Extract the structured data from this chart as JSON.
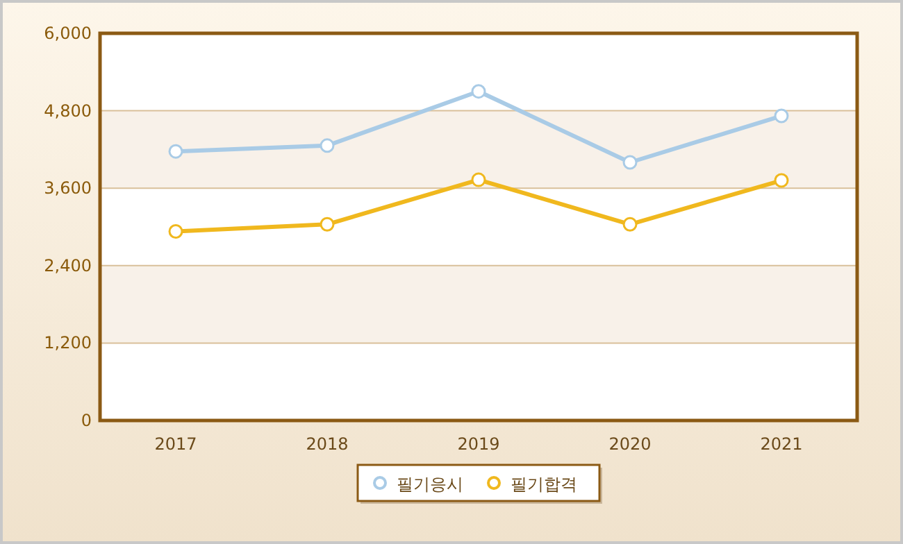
{
  "chart_data": {
    "type": "line",
    "categories": [
      "2017",
      "2018",
      "2019",
      "2020",
      "2021"
    ],
    "series": [
      {
        "name": "필기응시",
        "color": "#a9cbe6",
        "values": [
          4170,
          4260,
          5100,
          4000,
          4720
        ]
      },
      {
        "name": "필기합격",
        "color": "#f0b81e",
        "values": [
          2930,
          3040,
          3730,
          3040,
          3720
        ]
      }
    ],
    "ylim": [
      0,
      6000
    ],
    "yticks": [
      {
        "value": 0,
        "label": "0"
      },
      {
        "value": 1200,
        "label": "1,200"
      },
      {
        "value": 2400,
        "label": "2,400"
      },
      {
        "value": 3600,
        "label": "3,600"
      },
      {
        "value": 4800,
        "label": "4,800"
      },
      {
        "value": 6000,
        "label": "6,000"
      }
    ],
    "grid": "y",
    "legend": "bottom",
    "marker": "circle",
    "line_style": "solid"
  }
}
